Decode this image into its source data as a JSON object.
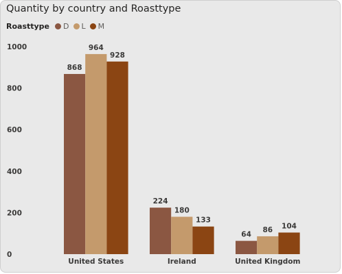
{
  "title": "Quantity by country and Roasttype",
  "legend": {
    "title": "Roasttype",
    "items": [
      {
        "label": "D",
        "color": "#8b5742"
      },
      {
        "label": "L",
        "color": "#c49a6c"
      },
      {
        "label": "M",
        "color": "#8b4513"
      }
    ]
  },
  "chart_data": {
    "type": "bar",
    "categories": [
      "United States",
      "Ireland",
      "United Kingdom"
    ],
    "series": [
      {
        "name": "D",
        "color": "#8b5742",
        "values": [
          868,
          224,
          64
        ]
      },
      {
        "name": "L",
        "color": "#c49a6c",
        "values": [
          964,
          180,
          86
        ]
      },
      {
        "name": "M",
        "color": "#8b4513",
        "values": [
          928,
          133,
          104
        ]
      }
    ],
    "yticks": [
      0,
      200,
      400,
      600,
      800,
      1000
    ],
    "ylim": [
      0,
      1000
    ],
    "grid": false,
    "legend_position": "top-left",
    "data_labels": true
  }
}
